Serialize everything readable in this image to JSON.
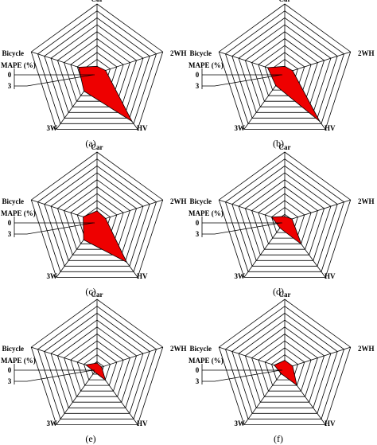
{
  "chart_data": [
    {
      "type": "radar",
      "caption": "(a)",
      "axes": [
        "Car",
        "2WH",
        "HV",
        "3W",
        "Bicycle"
      ],
      "scale_label": "MAPE (%)",
      "scale_ticks": [
        "0",
        "3"
      ],
      "rings": 10,
      "fill_color": "#ee0000",
      "values": [
        1.0,
        1.3,
        8.6,
        3.2,
        2.8
      ]
    },
    {
      "type": "radar",
      "caption": "(b)",
      "axes": [
        "Car",
        "2WH",
        "HV",
        "3W",
        "Bicycle"
      ],
      "scale_label": "MAPE (%)",
      "scale_ticks": [
        "0",
        "3"
      ],
      "rings": 10,
      "fill_color": "#ee0000",
      "values": [
        1.0,
        1.2,
        8.6,
        2.2,
        2.6
      ]
    },
    {
      "type": "radar",
      "caption": "(c)",
      "axes": [
        "Car",
        "2WH",
        "HV",
        "3W",
        "Bicycle"
      ],
      "scale_label": "MAPE (%)",
      "scale_ticks": [
        "0",
        "3"
      ],
      "rings": 10,
      "fill_color": "#ee0000",
      "values": [
        1.5,
        1.3,
        7.3,
        3.3,
        2.1
      ]
    },
    {
      "type": "radar",
      "caption": "(d)",
      "axes": [
        "Car",
        "2WH",
        "HV",
        "3W",
        "Bicycle"
      ],
      "scale_label": "MAPE (%)",
      "scale_ticks": [
        "0",
        "3"
      ],
      "rings": 10,
      "fill_color": "#ee0000",
      "values": [
        0.7,
        1.1,
        4.1,
        1.2,
        2.0
      ]
    },
    {
      "type": "radar",
      "caption": "(e)",
      "axes": [
        "Car",
        "2WH",
        "HV",
        "3W",
        "Bicycle"
      ],
      "scale_label": "MAPE (%)",
      "scale_ticks": [
        "0",
        "3"
      ],
      "rings": 10,
      "fill_color": "#ee0000",
      "values": [
        0.8,
        0.7,
        2.1,
        0.6,
        1.7
      ]
    },
    {
      "type": "radar",
      "caption": "(f)",
      "axes": [
        "Car",
        "2WH",
        "HV",
        "3W",
        "Bicycle"
      ],
      "scale_label": "MAPE (%)",
      "scale_ticks": [
        "0",
        "3"
      ],
      "rings": 10,
      "fill_color": "#ee0000",
      "values": [
        1.2,
        1.2,
        3.0,
        0.9,
        1.6
      ]
    }
  ]
}
